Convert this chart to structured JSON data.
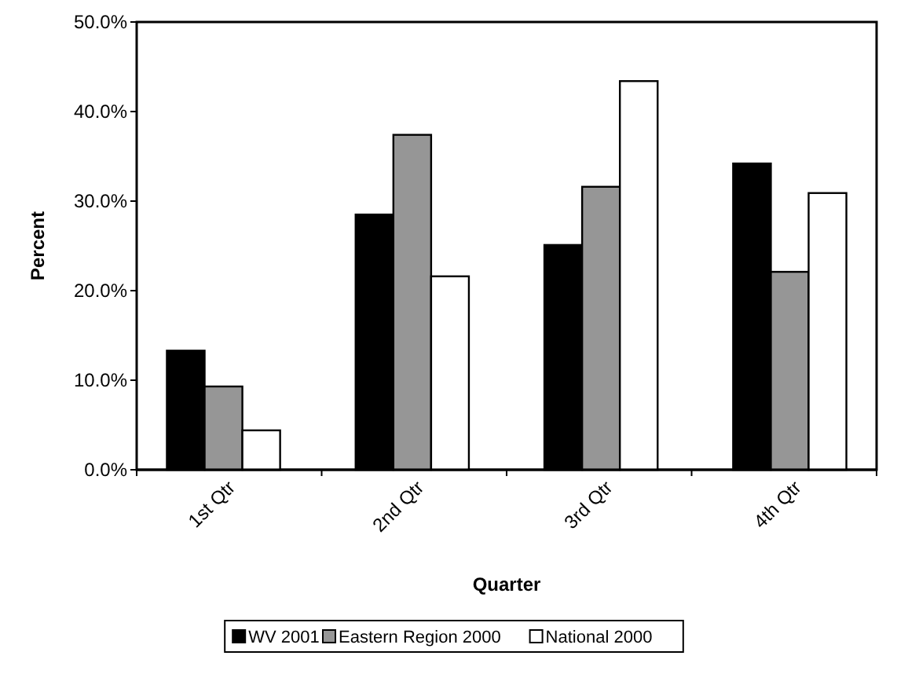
{
  "chart_data": {
    "type": "bar",
    "xlabel": "Quarter",
    "ylabel": "Percent",
    "categories": [
      "1st Qtr",
      "2nd Qtr",
      "3rd Qtr",
      "4th Qtr"
    ],
    "series": [
      {
        "name": "WV 2001",
        "color": "#000000",
        "values": [
          13.3,
          28.5,
          25.1,
          34.2
        ]
      },
      {
        "name": "Eastern Region 2000",
        "color": "#969696",
        "values": [
          9.3,
          37.4,
          31.6,
          22.1
        ]
      },
      {
        "name": "National 2000",
        "color": "#ffffff",
        "values": [
          4.4,
          21.6,
          43.4,
          30.9
        ]
      }
    ],
    "ylim": [
      0,
      50
    ],
    "yticks": [
      {
        "value": 0,
        "label": "0.0%"
      },
      {
        "value": 10,
        "label": "10.0%"
      },
      {
        "value": 20,
        "label": "20.0%"
      },
      {
        "value": 30,
        "label": "30.0%"
      },
      {
        "value": 40,
        "label": "40.0%"
      },
      {
        "value": 50,
        "label": "50.0%"
      }
    ],
    "grid": false,
    "legend": "bottom"
  }
}
